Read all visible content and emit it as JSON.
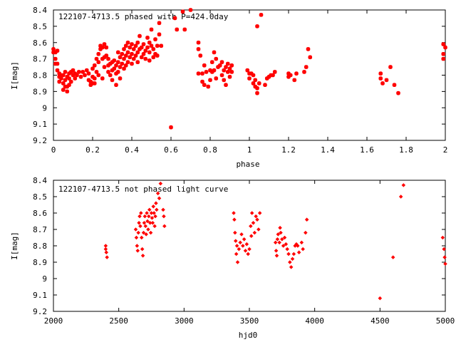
{
  "charts": [
    {
      "type": "scatter",
      "title": "122107-4713.5 phased with P=424.0day",
      "xlabel": "phase",
      "ylabel": "I[mag]",
      "xlim": [
        0,
        2
      ],
      "ylim": [
        8.4,
        9.2
      ],
      "y_inverted": true,
      "grid": false,
      "xticks": [
        "0",
        "0.2",
        "0.4",
        "0.6",
        "0.8",
        "1",
        "1.2",
        "1.4",
        "1.6",
        "1.8",
        "2"
      ],
      "yticks": [
        "8.4",
        "8.5",
        "8.6",
        "8.7",
        "8.8",
        "8.9",
        "9",
        "9.1",
        "9.2"
      ],
      "marker": "star",
      "color": "#ff0000",
      "points": [
        [
          0.0,
          8.64
        ],
        [
          0.0,
          8.66
        ],
        [
          0.01,
          8.7
        ],
        [
          0.01,
          8.73
        ],
        [
          0.01,
          8.66
        ],
        [
          0.02,
          8.65
        ],
        [
          0.02,
          8.73
        ],
        [
          0.02,
          8.77
        ],
        [
          0.03,
          8.81
        ],
        [
          0.03,
          8.84
        ],
        [
          0.03,
          8.79
        ],
        [
          0.04,
          8.82
        ],
        [
          0.04,
          8.8
        ],
        [
          0.05,
          8.85
        ],
        [
          0.05,
          8.89
        ],
        [
          0.05,
          8.8
        ],
        [
          0.06,
          8.87
        ],
        [
          0.06,
          8.83
        ],
        [
          0.06,
          8.78
        ],
        [
          0.07,
          8.81
        ],
        [
          0.07,
          8.87
        ],
        [
          0.07,
          8.9
        ],
        [
          0.08,
          8.82
        ],
        [
          0.08,
          8.79
        ],
        [
          0.08,
          8.86
        ],
        [
          0.09,
          8.78
        ],
        [
          0.09,
          8.84
        ],
        [
          0.1,
          8.8
        ],
        [
          0.1,
          8.77
        ],
        [
          0.11,
          8.82
        ],
        [
          0.11,
          8.79
        ],
        [
          0.12,
          8.8
        ],
        [
          0.13,
          8.78
        ],
        [
          0.14,
          8.81
        ],
        [
          0.15,
          8.78
        ],
        [
          0.16,
          8.8
        ],
        [
          0.17,
          8.77
        ],
        [
          0.18,
          8.79
        ],
        [
          0.18,
          8.83
        ],
        [
          0.19,
          8.84
        ],
        [
          0.19,
          8.86
        ],
        [
          0.2,
          8.85
        ],
        [
          0.2,
          8.81
        ],
        [
          0.2,
          8.76
        ],
        [
          0.21,
          8.74
        ],
        [
          0.21,
          8.82
        ],
        [
          0.21,
          8.85
        ],
        [
          0.22,
          8.7
        ],
        [
          0.22,
          8.78
        ],
        [
          0.23,
          8.67
        ],
        [
          0.23,
          8.72
        ],
        [
          0.23,
          8.8
        ],
        [
          0.24,
          8.64
        ],
        [
          0.24,
          8.62
        ],
        [
          0.25,
          8.7
        ],
        [
          0.25,
          8.63
        ],
        [
          0.25,
          8.82
        ],
        [
          0.26,
          8.61
        ],
        [
          0.26,
          8.69
        ],
        [
          0.26,
          8.75
        ],
        [
          0.27,
          8.63
        ],
        [
          0.27,
          8.68
        ],
        [
          0.28,
          8.7
        ],
        [
          0.28,
          8.74
        ],
        [
          0.28,
          8.78
        ],
        [
          0.29,
          8.73
        ],
        [
          0.29,
          8.8
        ],
        [
          0.3,
          8.72
        ],
        [
          0.3,
          8.77
        ],
        [
          0.3,
          8.83
        ],
        [
          0.31,
          8.71
        ],
        [
          0.31,
          8.76
        ],
        [
          0.32,
          8.74
        ],
        [
          0.32,
          8.79
        ],
        [
          0.32,
          8.86
        ],
        [
          0.33,
          8.66
        ],
        [
          0.33,
          8.72
        ],
        [
          0.33,
          8.78
        ],
        [
          0.34,
          8.69
        ],
        [
          0.34,
          8.75
        ],
        [
          0.34,
          8.82
        ],
        [
          0.35,
          8.67
        ],
        [
          0.35,
          8.73
        ],
        [
          0.36,
          8.64
        ],
        [
          0.36,
          8.7
        ],
        [
          0.36,
          8.76
        ],
        [
          0.37,
          8.62
        ],
        [
          0.37,
          8.68
        ],
        [
          0.37,
          8.74
        ],
        [
          0.38,
          8.6
        ],
        [
          0.38,
          8.66
        ],
        [
          0.38,
          8.72
        ],
        [
          0.39,
          8.63
        ],
        [
          0.39,
          8.69
        ],
        [
          0.4,
          8.61
        ],
        [
          0.4,
          8.67
        ],
        [
          0.4,
          8.73
        ],
        [
          0.41,
          8.64
        ],
        [
          0.41,
          8.7
        ],
        [
          0.42,
          8.62
        ],
        [
          0.42,
          8.68
        ],
        [
          0.43,
          8.6
        ],
        [
          0.43,
          8.66
        ],
        [
          0.43,
          8.72
        ],
        [
          0.44,
          8.56
        ],
        [
          0.44,
          8.64
        ],
        [
          0.45,
          8.63
        ],
        [
          0.45,
          8.69
        ],
        [
          0.46,
          8.61
        ],
        [
          0.46,
          8.67
        ],
        [
          0.47,
          8.65
        ],
        [
          0.47,
          8.7
        ],
        [
          0.48,
          8.57
        ],
        [
          0.48,
          8.63
        ],
        [
          0.49,
          8.6
        ],
        [
          0.49,
          8.66
        ],
        [
          0.49,
          8.71
        ],
        [
          0.5,
          8.52
        ],
        [
          0.5,
          8.62
        ],
        [
          0.51,
          8.64
        ],
        [
          0.51,
          8.69
        ],
        [
          0.52,
          8.58
        ],
        [
          0.52,
          8.67
        ],
        [
          0.53,
          8.62
        ],
        [
          0.53,
          8.68
        ],
        [
          0.54,
          8.48
        ],
        [
          0.54,
          8.55
        ],
        [
          0.55,
          8.62
        ],
        [
          0.6,
          9.12
        ],
        [
          0.62,
          8.45
        ],
        [
          0.63,
          8.52
        ],
        [
          0.66,
          8.41
        ],
        [
          0.67,
          8.52
        ],
        [
          0.7,
          8.4
        ],
        [
          0.74,
          8.6
        ],
        [
          0.74,
          8.64
        ],
        [
          0.74,
          8.79
        ],
        [
          0.75,
          8.68
        ],
        [
          0.76,
          8.79
        ],
        [
          0.76,
          8.84
        ],
        [
          0.77,
          8.86
        ],
        [
          0.77,
          8.74
        ],
        [
          0.78,
          8.78
        ],
        [
          0.79,
          8.87
        ],
        [
          0.8,
          8.77
        ],
        [
          0.8,
          8.83
        ],
        [
          0.81,
          8.72
        ],
        [
          0.81,
          8.78
        ],
        [
          0.82,
          8.66
        ],
        [
          0.82,
          8.77
        ],
        [
          0.83,
          8.82
        ],
        [
          0.83,
          8.7
        ],
        [
          0.84,
          8.75
        ],
        [
          0.85,
          8.74
        ],
        [
          0.86,
          8.72
        ],
        [
          0.86,
          8.8
        ],
        [
          0.87,
          8.77
        ],
        [
          0.87,
          8.83
        ],
        [
          0.88,
          8.86
        ],
        [
          0.88,
          8.75
        ],
        [
          0.89,
          8.73
        ],
        [
          0.89,
          8.78
        ],
        [
          0.9,
          8.81
        ],
        [
          0.9,
          8.76
        ],
        [
          0.91,
          8.74
        ],
        [
          0.91,
          8.78
        ],
        [
          0.99,
          8.77
        ],
        [
          1.0,
          8.82
        ],
        [
          1.0,
          8.79
        ],
        [
          1.01,
          8.79
        ],
        [
          1.02,
          8.8
        ],
        [
          1.02,
          8.85
        ],
        [
          1.03,
          8.83
        ],
        [
          1.03,
          8.87
        ],
        [
          1.04,
          8.88
        ],
        [
          1.04,
          8.91
        ],
        [
          1.05,
          8.85
        ],
        [
          1.04,
          8.5
        ],
        [
          1.06,
          8.43
        ],
        [
          1.08,
          8.86
        ],
        [
          1.09,
          8.82
        ],
        [
          1.1,
          8.81
        ],
        [
          1.11,
          8.8
        ],
        [
          1.12,
          8.8
        ],
        [
          1.13,
          8.78
        ],
        [
          1.2,
          8.81
        ],
        [
          1.2,
          8.79
        ],
        [
          1.21,
          8.8
        ],
        [
          1.23,
          8.83
        ],
        [
          1.24,
          8.79
        ],
        [
          1.28,
          8.78
        ],
        [
          1.29,
          8.75
        ],
        [
          1.3,
          8.64
        ],
        [
          1.31,
          8.69
        ],
        [
          1.67,
          8.79
        ],
        [
          1.67,
          8.82
        ],
        [
          1.68,
          8.85
        ],
        [
          1.7,
          8.83
        ],
        [
          1.72,
          8.75
        ],
        [
          1.74,
          8.86
        ],
        [
          1.76,
          8.91
        ],
        [
          1.99,
          8.61
        ],
        [
          1.99,
          8.67
        ],
        [
          1.99,
          8.7
        ],
        [
          2.0,
          8.63
        ]
      ]
    },
    {
      "type": "scatter",
      "title": "122107-4713.5 not phased light curve",
      "xlabel": "hjd0",
      "ylabel": "I[mag]",
      "xlim": [
        2000,
        5000
      ],
      "ylim": [
        8.4,
        9.2
      ],
      "y_inverted": true,
      "grid": false,
      "xticks": [
        "2000",
        "2500",
        "3000",
        "3500",
        "4000",
        "4500",
        "5000"
      ],
      "yticks": [
        "8.4",
        "8.5",
        "8.6",
        "8.7",
        "8.8",
        "8.9",
        "9",
        "9.1",
        "9.2"
      ],
      "marker": "diamond",
      "color": "#ff0000",
      "points": [
        [
          2400,
          8.8
        ],
        [
          2400,
          8.82
        ],
        [
          2405,
          8.84
        ],
        [
          2410,
          8.87
        ],
        [
          2630,
          8.7
        ],
        [
          2635,
          8.75
        ],
        [
          2640,
          8.8
        ],
        [
          2645,
          8.83
        ],
        [
          2650,
          8.72
        ],
        [
          2655,
          8.66
        ],
        [
          2660,
          8.62
        ],
        [
          2665,
          8.68
        ],
        [
          2670,
          8.6
        ],
        [
          2675,
          8.75
        ],
        [
          2680,
          8.82
        ],
        [
          2685,
          8.86
        ],
        [
          2690,
          8.72
        ],
        [
          2695,
          8.66
        ],
        [
          2700,
          8.62
        ],
        [
          2705,
          8.68
        ],
        [
          2710,
          8.73
        ],
        [
          2715,
          8.6
        ],
        [
          2720,
          8.65
        ],
        [
          2725,
          8.7
        ],
        [
          2730,
          8.62
        ],
        [
          2735,
          8.58
        ],
        [
          2740,
          8.66
        ],
        [
          2745,
          8.72
        ],
        [
          2750,
          8.6
        ],
        [
          2755,
          8.63
        ],
        [
          2760,
          8.66
        ],
        [
          2765,
          8.56
        ],
        [
          2770,
          8.6
        ],
        [
          2775,
          8.68
        ],
        [
          2780,
          8.62
        ],
        [
          2785,
          8.54
        ],
        [
          2790,
          8.58
        ],
        [
          2800,
          8.48
        ],
        [
          2810,
          8.51
        ],
        [
          2820,
          8.42
        ],
        [
          2840,
          8.58
        ],
        [
          2845,
          8.62
        ],
        [
          2850,
          8.68
        ],
        [
          3380,
          8.6
        ],
        [
          3385,
          8.64
        ],
        [
          3390,
          8.72
        ],
        [
          3395,
          8.77
        ],
        [
          3400,
          8.85
        ],
        [
          3405,
          8.8
        ],
        [
          3410,
          8.9
        ],
        [
          3420,
          8.82
        ],
        [
          3430,
          8.78
        ],
        [
          3440,
          8.73
        ],
        [
          3450,
          8.8
        ],
        [
          3460,
          8.76
        ],
        [
          3470,
          8.83
        ],
        [
          3480,
          8.79
        ],
        [
          3490,
          8.85
        ],
        [
          3500,
          8.82
        ],
        [
          3510,
          8.68
        ],
        [
          3515,
          8.74
        ],
        [
          3520,
          8.6
        ],
        [
          3530,
          8.66
        ],
        [
          3540,
          8.72
        ],
        [
          3550,
          8.62
        ],
        [
          3560,
          8.64
        ],
        [
          3570,
          8.7
        ],
        [
          3580,
          8.6
        ],
        [
          3700,
          8.78
        ],
        [
          3705,
          8.83
        ],
        [
          3710,
          8.86
        ],
        [
          3715,
          8.76
        ],
        [
          3720,
          8.73
        ],
        [
          3730,
          8.78
        ],
        [
          3735,
          8.69
        ],
        [
          3740,
          8.72
        ],
        [
          3750,
          8.76
        ],
        [
          3760,
          8.8
        ],
        [
          3770,
          8.75
        ],
        [
          3780,
          8.79
        ],
        [
          3790,
          8.82
        ],
        [
          3800,
          8.85
        ],
        [
          3810,
          8.9
        ],
        [
          3820,
          8.93
        ],
        [
          3830,
          8.88
        ],
        [
          3840,
          8.85
        ],
        [
          3850,
          8.8
        ],
        [
          3860,
          8.79
        ],
        [
          3870,
          8.8
        ],
        [
          3880,
          8.84
        ],
        [
          3900,
          8.78
        ],
        [
          3910,
          8.82
        ],
        [
          3930,
          8.72
        ],
        [
          3940,
          8.64
        ],
        [
          4500,
          9.12
        ],
        [
          4600,
          8.87
        ],
        [
          4660,
          8.5
        ],
        [
          4680,
          8.43
        ],
        [
          4980,
          8.75
        ],
        [
          4990,
          8.82
        ],
        [
          4995,
          8.87
        ],
        [
          5000,
          8.91
        ]
      ]
    }
  ]
}
